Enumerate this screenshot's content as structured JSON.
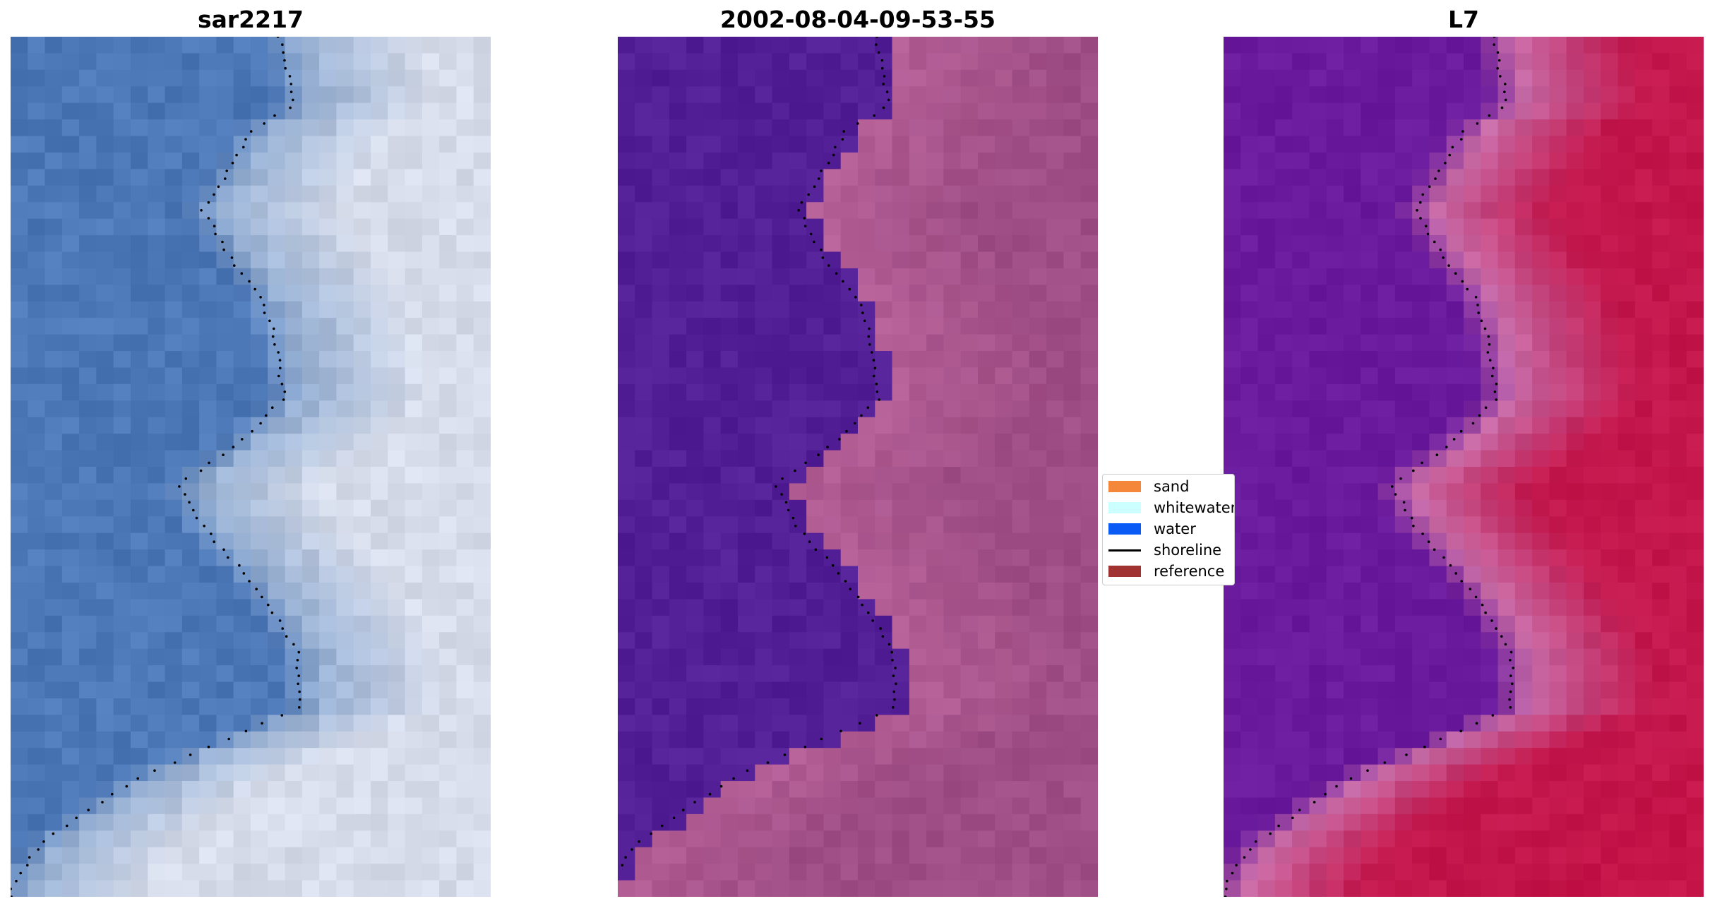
{
  "panels": [
    {
      "title": "sar2217",
      "kind": "rgb-image"
    },
    {
      "title": "2002-08-04-09-53-55",
      "kind": "classified-image"
    },
    {
      "title": "L7",
      "kind": "index-image"
    }
  ],
  "legend": {
    "items": [
      {
        "label": "sand",
        "color": "#f5873a",
        "type": "patch"
      },
      {
        "label": "whitewater",
        "color": "#ccffff",
        "type": "patch"
      },
      {
        "label": "water",
        "color": "#0a5af5",
        "type": "patch"
      },
      {
        "label": "shoreline",
        "color": "#000000",
        "type": "line"
      },
      {
        "label": "reference",
        "color": "#a03232",
        "type": "patch"
      }
    ]
  },
  "colors": {
    "rgb_water": "#4c78b8",
    "rgb_whitewater": "#d6dcea",
    "class_water": "#531f96",
    "class_land": "#a04e86",
    "index_water": "#6a1a9c",
    "index_land": "#c21a50"
  }
}
